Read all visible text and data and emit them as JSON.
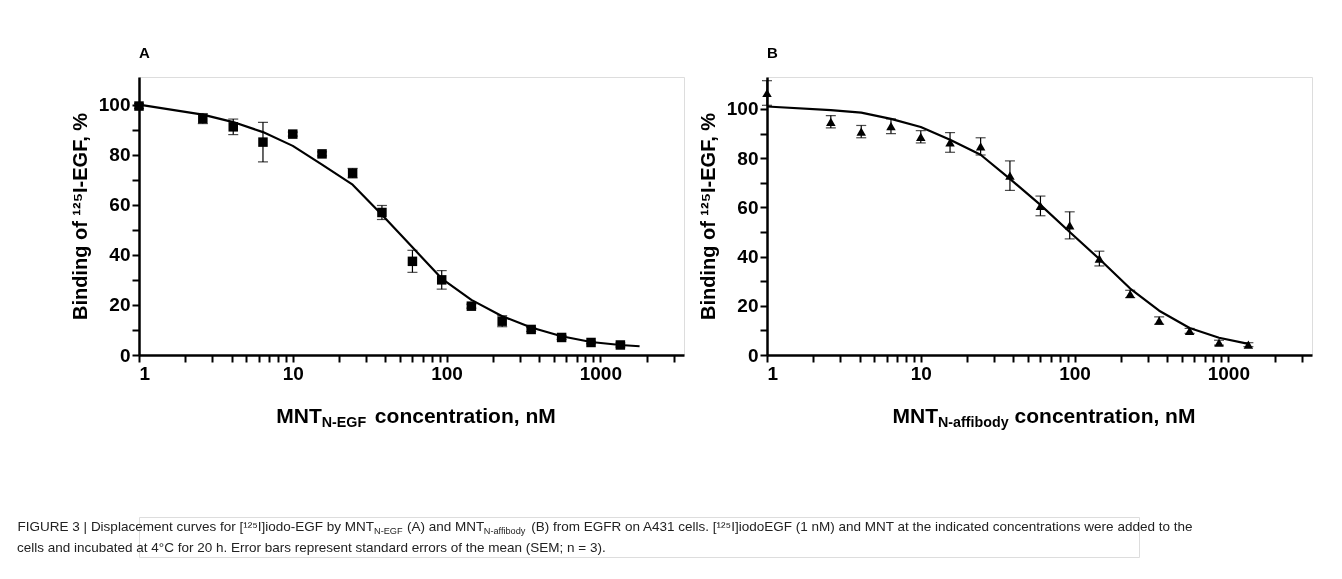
{
  "chart_data": [
    {
      "type": "scatter",
      "title": "A",
      "xlabel": "MNT$_{N-EGF}$ concentration, nM",
      "ylabel": "Binding of ¹²⁵I-EGF, %",
      "log": "x",
      "grid": false,
      "xlim": [
        1,
        3500
      ],
      "ylim": [
        0,
        111
      ],
      "xticks": [
        1,
        {
          "value": 2,
          "label": null
        },
        {
          "value": 3,
          "label": null
        },
        {
          "value": 4,
          "label": null
        },
        {
          "value": 5,
          "label": null
        },
        {
          "value": 6,
          "label": null
        },
        {
          "value": 7,
          "label": null
        },
        {
          "value": 8,
          "label": null
        },
        {
          "value": 9,
          "label": null
        },
        10,
        {
          "value": 20,
          "label": null
        },
        {
          "value": 30,
          "label": null
        },
        {
          "value": 40,
          "label": null
        },
        {
          "value": 50,
          "label": null
        },
        {
          "value": 60,
          "label": null
        },
        {
          "value": 70,
          "label": null
        },
        {
          "value": 80,
          "label": null
        },
        {
          "value": 90,
          "label": null
        },
        100,
        {
          "value": 200,
          "label": null
        },
        {
          "value": 300,
          "label": null
        },
        {
          "value": 400,
          "label": null
        },
        {
          "value": 500,
          "label": null
        },
        {
          "value": 600,
          "label": null
        },
        {
          "value": 700,
          "label": null
        },
        {
          "value": 800,
          "label": null
        },
        {
          "value": 900,
          "label": null
        },
        1000,
        {
          "value": 2000,
          "label": null
        },
        {
          "value": 3000,
          "label": null
        }
      ],
      "yticks": [
        0,
        {
          "value": 10,
          "label": null
        },
        20,
        {
          "value": 30,
          "label": null
        },
        40,
        {
          "value": 50,
          "label": null
        },
        60,
        {
          "value": 70,
          "label": null
        },
        80,
        {
          "value": 90,
          "label": null
        },
        100
      ],
      "annotations": [
        "FIGURE 3 | Displacement curves for [¹²⁵I]iodo-EGF by MNT$_{N-EGF}$ (A) and MNT$_{N-affibody}$ (B) from EGFR on A431 cells. [¹²⁵I]iodoEGF (1 nM) and MNT at the indicated concentrations were added to the cells and incubated at 4°C for 20 h. Error bars represent standard errors of the mean (SEM; n = 3)."
      ],
      "series": [
        {
          "type": "scatter",
          "marker": "square",
          "color": "#000000",
          "x": [
            1,
            2.6,
            4.1,
            6.4,
            10,
            15.5,
            24.5,
            38,
            60,
            93,
            145,
            230,
            355,
            560,
            870,
            1350
          ],
          "values": [
            99.4,
            94.4,
            91.1,
            85.0,
            88.2,
            80.3,
            72.6,
            56.9,
            37.4,
            30.0,
            19.5,
            13.5,
            10.2,
            7,
            5,
            4
          ],
          "errors": [
            1,
            2,
            3.1,
            7.9,
            0.8,
            0.8,
            1.9,
            2.8,
            4.4,
            3.7,
            0.8,
            2.2,
            0.8,
            0.8,
            0.5,
            0.8
          ]
        },
        {
          "type": "line",
          "line_style": "solid",
          "marker": "none",
          "color": "#000000",
          "x": [
            1,
            2.6,
            4.1,
            6.4,
            10,
            15.5,
            24.5,
            38,
            60,
            93,
            145,
            230,
            355,
            560,
            870,
            1350,
            1800
          ],
          "values": [
            100,
            96,
            93,
            89,
            83.5,
            76,
            68,
            56,
            43,
            30.5,
            22,
            15.5,
            11,
            7.5,
            5.2,
            4,
            3.5
          ]
        }
      ]
    },
    {
      "type": "scatter",
      "title": "B",
      "xlabel": "MNT$_{N-affibody}$ concentration, nM",
      "ylabel": "Binding of ¹²⁵I-EGF, %",
      "log": "x",
      "grid": false,
      "xlim": [
        1,
        3500
      ],
      "ylim": [
        0,
        113
      ],
      "xticks": [
        1,
        {
          "value": 2,
          "label": null
        },
        {
          "value": 3,
          "label": null
        },
        {
          "value": 4,
          "label": null
        },
        {
          "value": 5,
          "label": null
        },
        {
          "value": 6,
          "label": null
        },
        {
          "value": 7,
          "label": null
        },
        {
          "value": 8,
          "label": null
        },
        {
          "value": 9,
          "label": null
        },
        10,
        {
          "value": 20,
          "label": null
        },
        {
          "value": 30,
          "label": null
        },
        {
          "value": 40,
          "label": null
        },
        {
          "value": 50,
          "label": null
        },
        {
          "value": 60,
          "label": null
        },
        {
          "value": 70,
          "label": null
        },
        {
          "value": 80,
          "label": null
        },
        {
          "value": 90,
          "label": null
        },
        100,
        {
          "value": 200,
          "label": null
        },
        {
          "value": 300,
          "label": null
        },
        {
          "value": 400,
          "label": null
        },
        {
          "value": 500,
          "label": null
        },
        {
          "value": 600,
          "label": null
        },
        {
          "value": 700,
          "label": null
        },
        {
          "value": 800,
          "label": null
        },
        {
          "value": 900,
          "label": null
        },
        1000,
        {
          "value": 2000,
          "label": null
        },
        {
          "value": 3000,
          "label": null
        }
      ],
      "yticks": [
        0,
        {
          "value": 10,
          "label": null
        },
        20,
        {
          "value": 30,
          "label": null
        },
        40,
        {
          "value": 50,
          "label": null
        },
        60,
        {
          "value": 70,
          "label": null
        },
        80,
        {
          "value": 90,
          "label": null
        },
        100
      ],
      "series": [
        {
          "type": "scatter",
          "marker": "triangle",
          "color": "#000000",
          "x": [
            1,
            2.6,
            4.1,
            6.4,
            10,
            15.5,
            24.5,
            38,
            60,
            93,
            145,
            230,
            355,
            560,
            870,
            1350
          ],
          "values": [
            106.5,
            94.8,
            90.8,
            93,
            88.7,
            86.4,
            84.8,
            72.9,
            60.6,
            52.7,
            39.2,
            24.8,
            14,
            9.8,
            5,
            4.2
          ],
          "errors": [
            5,
            2.5,
            2.5,
            3,
            2.5,
            4,
            3.5,
            6,
            4,
            5.5,
            3,
            1.5,
            1.5,
            1,
            1,
            0.8
          ]
        },
        {
          "type": "line",
          "line_style": "solid",
          "marker": "none",
          "color": "#000000",
          "x": [
            1,
            2.6,
            4.1,
            6.4,
            10,
            15.5,
            24.5,
            38,
            60,
            93,
            145,
            230,
            355,
            560,
            870,
            1350
          ],
          "values": [
            101,
            99.5,
            98.5,
            96,
            92.7,
            87.5,
            81.4,
            71.6,
            61,
            50,
            39,
            27,
            18,
            11,
            7,
            4.5
          ]
        }
      ]
    }
  ]
}
